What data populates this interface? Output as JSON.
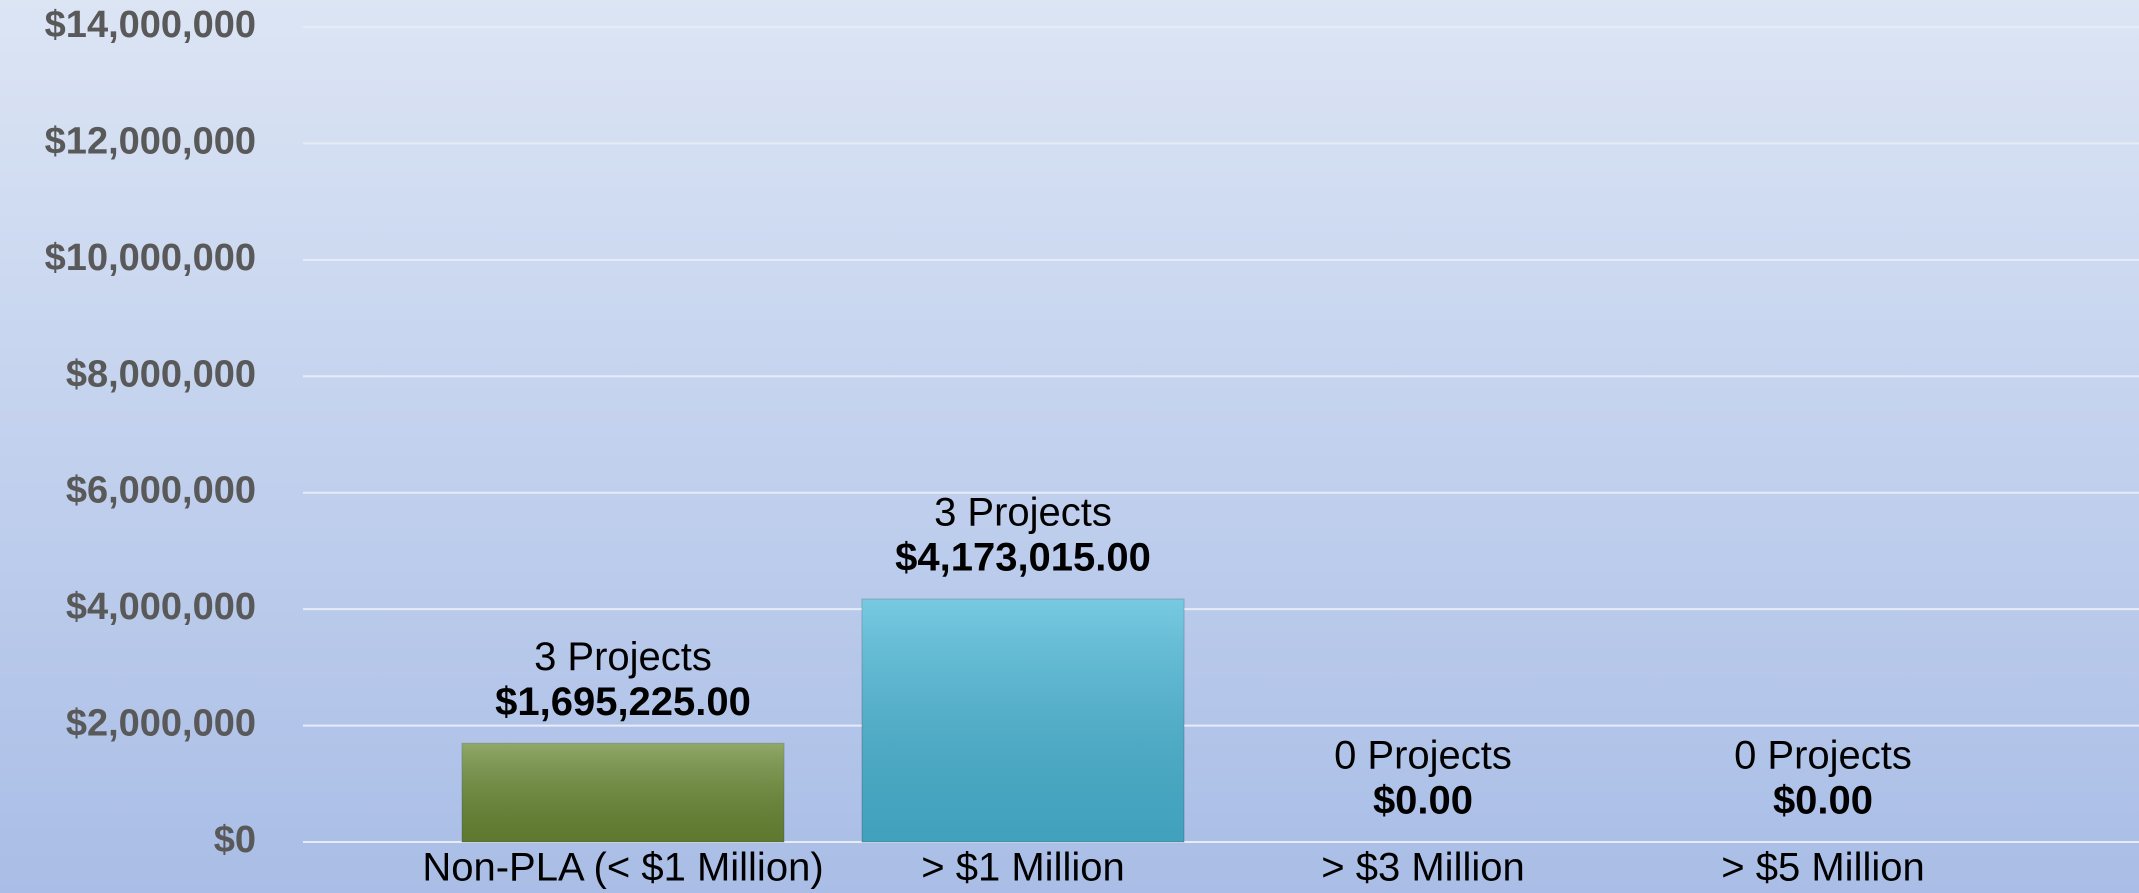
{
  "chart_data": {
    "type": "bar",
    "categories": [
      "Non-PLA (< $1 Million)",
      "> $1 Million",
      "> $3 Million",
      "> $5 Million"
    ],
    "values": [
      1695225,
      4173015,
      0,
      0
    ],
    "value_labels": [
      "$1,695,225.00",
      "$4,173,015.00",
      "$0.00",
      "$0.00"
    ],
    "project_labels": [
      "3 Projects",
      "3 Projects",
      "0 Projects",
      "0 Projects"
    ],
    "colors": [
      "#6b8a35",
      "#4ab8d8"
    ],
    "ylim": [
      0,
      14000000
    ],
    "yticks": [
      {
        "value": 0,
        "label": "$0"
      },
      {
        "value": 2000000,
        "label": "$2,000,000"
      },
      {
        "value": 4000000,
        "label": "$4,000,000"
      },
      {
        "value": 6000000,
        "label": "$6,000,000"
      },
      {
        "value": 8000000,
        "label": "$8,000,000"
      },
      {
        "value": 10000000,
        "label": "$10,000,000"
      },
      {
        "value": 12000000,
        "label": "$12,000,000"
      },
      {
        "value": 14000000,
        "label": "$14,000,000"
      }
    ],
    "grid": true
  }
}
